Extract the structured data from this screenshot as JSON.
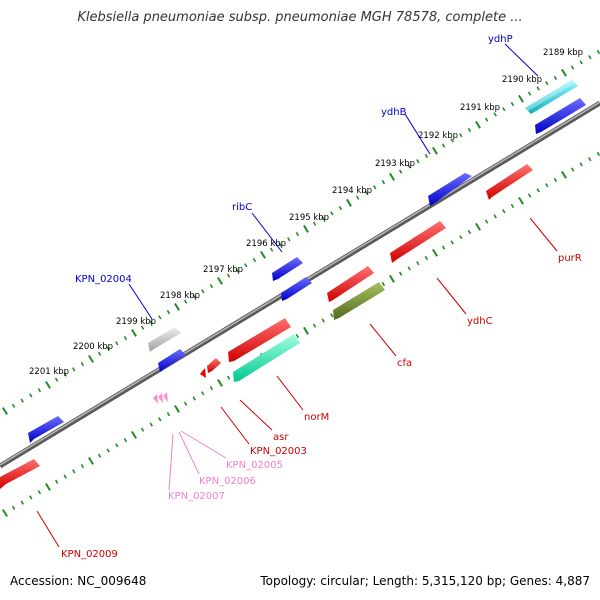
{
  "title": "Klebsiella pneumoniae subsp. pneumoniae MGH 78578, complete ...",
  "footer": {
    "accession_label": "Accession:",
    "accession": "NC_009648",
    "topology_label": "Topology:",
    "topology": "circular",
    "length_label": "Length:",
    "length": "5,315,120 bp",
    "genes_label": "Genes:",
    "genes": "4,887"
  },
  "colors": {
    "backbone": "#7f7f7f",
    "ticks": "#228b22",
    "blue_feature": "#0000ee",
    "red_feature": "#ee0000",
    "teal_feature": "#00e6b0",
    "cyan_feature": "#20c8d8",
    "olive_feature": "#6b8e23",
    "gray_feature": "#c0c0c0",
    "pink_feature": "#ff7fbf",
    "blue_label": "#0000cc",
    "red_label": "#cc0000",
    "pink_label": "#ee82c8"
  },
  "scale_labels": [
    "2189 kbp",
    "2190 kbp",
    "2191 kbp",
    "2192 kbp",
    "2193 kbp",
    "2194 kbp",
    "2195 kbp",
    "2196 kbp",
    "2197 kbp",
    "2198 kbp",
    "2199 kbp",
    "2200 kbp",
    "2201 kbp"
  ],
  "forward_labels": [
    "ydhP",
    "ydhB",
    "ribC",
    "KPN_02004"
  ],
  "reverse_labels": [
    "purR",
    "ydhC",
    "cfa",
    "norM",
    "asr",
    "KPN_02003",
    "KPN_02005",
    "KPN_02006",
    "KPN_02007",
    "KPN_02009"
  ]
}
